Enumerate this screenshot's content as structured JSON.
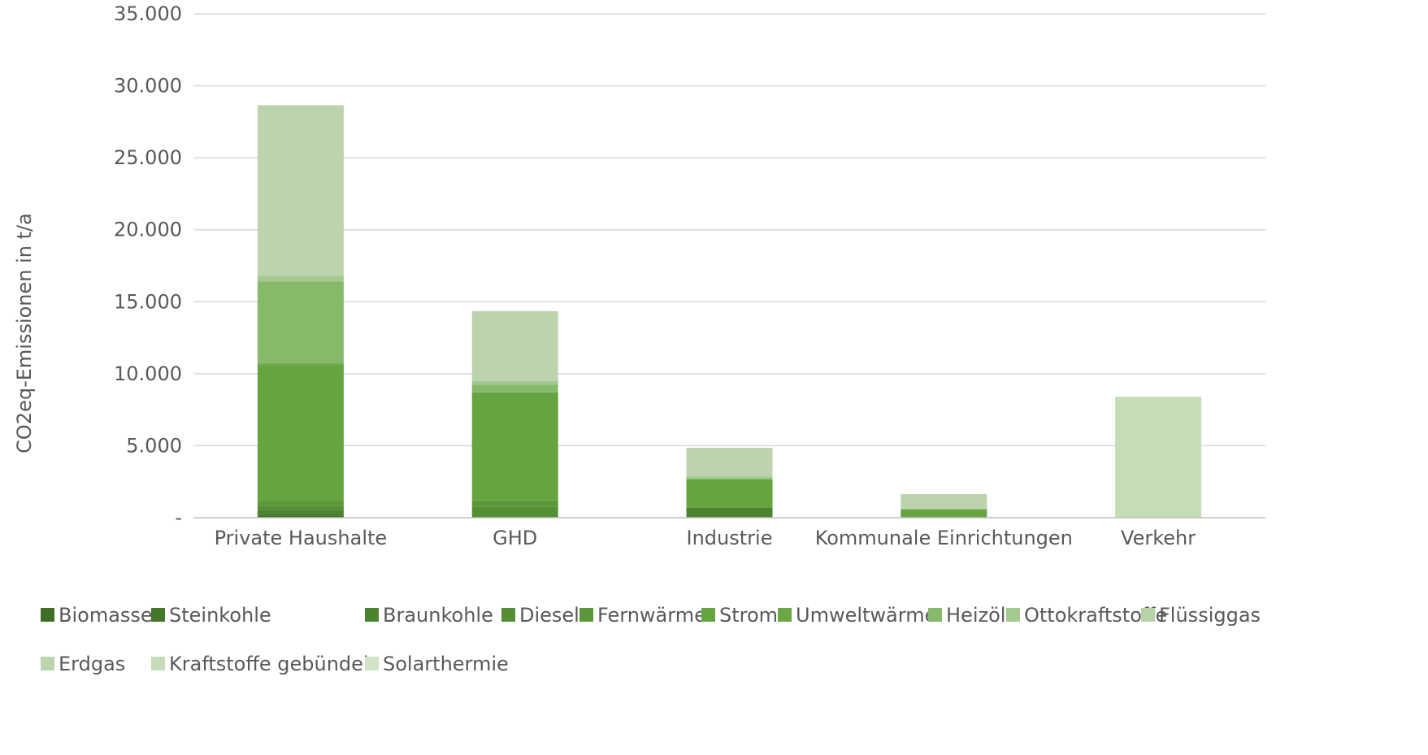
{
  "chart_data": {
    "type": "bar",
    "stacked": true,
    "ylabel": "CO2eq-Emissionen in t/a",
    "ylim": [
      0,
      35000
    ],
    "yticks": [
      0,
      5000,
      10000,
      15000,
      20000,
      25000,
      30000,
      35000
    ],
    "ytick_labels": [
      "-",
      "5.000",
      "10.000",
      "15.000",
      "20.000",
      "25.000",
      "30.000",
      "35.000"
    ],
    "grid": true,
    "legend_position": "bottom",
    "categories": [
      "Private Haushalte",
      "GHD",
      "Industrie",
      "Kommunale Einrichtungen",
      "Verkehr"
    ],
    "series": [
      {
        "name": "Biomasse",
        "color": "#3f6f26",
        "values": [
          150,
          0,
          0,
          0,
          0
        ]
      },
      {
        "name": "Steinkohle",
        "color": "#44772a",
        "values": [
          100,
          0,
          0,
          0,
          0
        ]
      },
      {
        "name": "Braunkohle",
        "color": "#4c832f",
        "values": [
          300,
          0,
          700,
          0,
          0
        ]
      },
      {
        "name": "Diesel",
        "color": "#548f34",
        "values": [
          250,
          750,
          0,
          0,
          0
        ]
      },
      {
        "name": "Fernwärme",
        "color": "#5a9738",
        "values": [
          300,
          450,
          0,
          0,
          0
        ]
      },
      {
        "name": "Strom",
        "color": "#66a43f",
        "values": [
          9400,
          7500,
          1900,
          550,
          0
        ]
      },
      {
        "name": "Umweltwärme",
        "color": "#6aa843",
        "values": [
          200,
          0,
          100,
          50,
          0
        ]
      },
      {
        "name": "Heizöl",
        "color": "#87b96b",
        "values": [
          5700,
          550,
          0,
          0,
          0
        ]
      },
      {
        "name": "Ottokraftstoffe",
        "color": "#a3c98e",
        "values": [
          400,
          250,
          150,
          0,
          0
        ]
      },
      {
        "name": "Flüssiggas",
        "color": "#b5d3a4",
        "values": [
          0,
          0,
          0,
          0,
          0
        ]
      },
      {
        "name": "Erdgas",
        "color": "#bbd4ae",
        "values": [
          11850,
          4850,
          2000,
          1050,
          0
        ]
      },
      {
        "name": "Kraftstoffe gebündelt",
        "color": "#c5dcb8",
        "values": [
          0,
          0,
          0,
          0,
          8400
        ]
      },
      {
        "name": "Solarthermie",
        "color": "#d2e4c8",
        "values": [
          0,
          0,
          0,
          0,
          0
        ]
      }
    ]
  }
}
